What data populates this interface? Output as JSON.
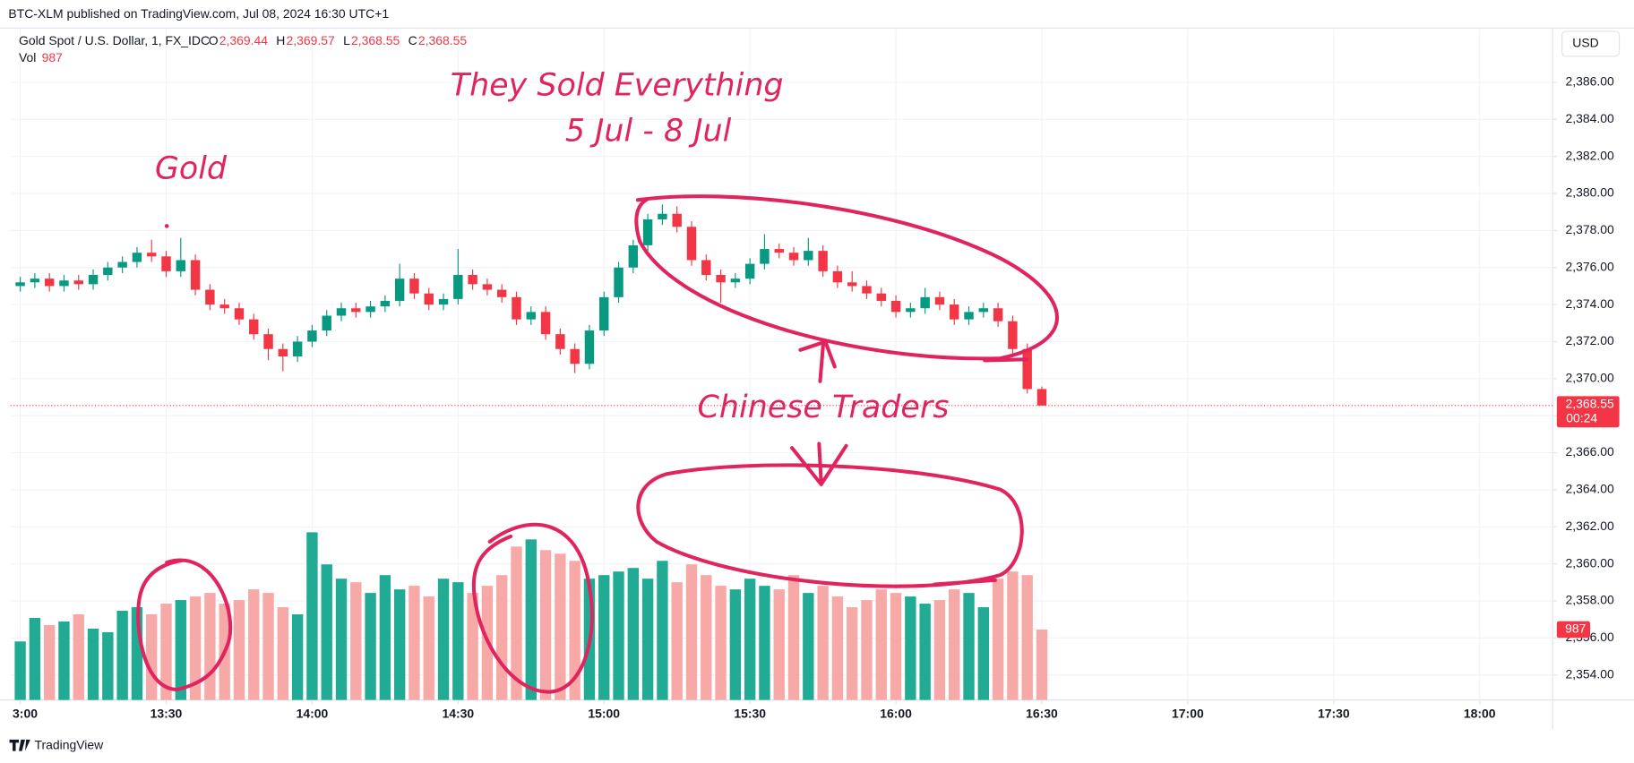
{
  "publish_line": "BTC-XLM published on TradingView.com, Jul 08, 2024 16:30 UTC+1",
  "currency": "USD",
  "footer": "TradingView",
  "chart_data": {
    "type": "candlestick",
    "symbol": "Gold Spot / U.S. Dollar, 1, FX_IDC",
    "legend_ohlc": [
      {
        "key": "O",
        "label": "2,369.44"
      },
      {
        "key": "H",
        "label": "2,369.57"
      },
      {
        "key": "L",
        "label": "2,368.55"
      },
      {
        "key": "C",
        "label": "2,368.55"
      }
    ],
    "volume_name": "Vol",
    "last_price": {
      "value": 2368.55,
      "label": "2,368.55"
    },
    "countdown": "00:24",
    "annotations": [
      "They Sold Everything",
      "5 Jul - 8 Jul",
      "Gold",
      "Chinese Traders"
    ],
    "up_color": "#089981",
    "down_color": "#f23645",
    "volume_up_color": "#22ab94",
    "volume_down_color": "#f7a9a7",
    "grid": true,
    "x": [
      "13:00",
      "13:03",
      "13:06",
      "13:09",
      "13:12",
      "13:15",
      "13:18",
      "13:21",
      "13:24",
      "13:27",
      "13:30",
      "13:33",
      "13:36",
      "13:39",
      "13:42",
      "13:45",
      "13:48",
      "13:51",
      "13:54",
      "13:57",
      "14:00",
      "14:03",
      "14:06",
      "14:09",
      "14:12",
      "14:15",
      "14:18",
      "14:21",
      "14:24",
      "14:27",
      "14:30",
      "14:33",
      "14:36",
      "14:39",
      "14:42",
      "14:45",
      "14:48",
      "14:51",
      "14:54",
      "14:57",
      "15:00",
      "15:03",
      "15:06",
      "15:09",
      "15:12",
      "15:15",
      "15:18",
      "15:21",
      "15:24",
      "15:27",
      "15:30",
      "15:33",
      "15:36",
      "15:39",
      "15:42",
      "15:45",
      "15:48",
      "15:51",
      "15:54",
      "15:57",
      "16:00",
      "16:03",
      "16:06",
      "16:09",
      "16:12",
      "16:15",
      "16:18",
      "16:21",
      "16:24",
      "16:27",
      "16:30"
    ],
    "open": [
      2375.0,
      2375.2,
      2375.4,
      2375.0,
      2375.3,
      2375.1,
      2375.6,
      2376.0,
      2376.3,
      2376.8,
      2376.6,
      2375.8,
      2376.4,
      2374.8,
      2374.0,
      2373.8,
      2373.2,
      2372.4,
      2371.6,
      2371.2,
      2372.0,
      2372.6,
      2373.4,
      2373.8,
      2373.6,
      2373.9,
      2374.2,
      2375.4,
      2374.6,
      2374.0,
      2374.3,
      2375.6,
      2375.1,
      2374.8,
      2374.4,
      2373.2,
      2373.6,
      2372.4,
      2371.6,
      2370.8,
      2372.6,
      2374.4,
      2376.0,
      2377.2,
      2378.6,
      2378.9,
      2378.2,
      2376.4,
      2375.6,
      2375.2,
      2375.4,
      2376.2,
      2377.0,
      2376.8,
      2376.4,
      2376.9,
      2375.8,
      2375.2,
      2375.0,
      2374.6,
      2374.2,
      2373.6,
      2373.8,
      2374.4,
      2374.0,
      2373.2,
      2373.6,
      2373.8,
      2373.1,
      2371.6,
      2369.44
    ],
    "high": [
      2375.5,
      2375.7,
      2375.7,
      2375.6,
      2375.6,
      2375.9,
      2376.3,
      2376.6,
      2377.1,
      2377.5,
      2376.9,
      2377.6,
      2376.7,
      2375.1,
      2374.3,
      2374.1,
      2373.5,
      2372.7,
      2371.9,
      2372.3,
      2372.9,
      2373.7,
      2374.1,
      2374.1,
      2374.2,
      2374.5,
      2376.2,
      2375.7,
      2374.9,
      2374.6,
      2377.0,
      2375.9,
      2375.4,
      2375.1,
      2374.7,
      2373.9,
      2373.9,
      2372.7,
      2371.9,
      2372.9,
      2374.7,
      2376.3,
      2377.5,
      2378.9,
      2379.4,
      2379.3,
      2378.5,
      2376.7,
      2375.9,
      2375.7,
      2376.5,
      2377.8,
      2377.3,
      2377.1,
      2377.6,
      2377.2,
      2376.1,
      2375.8,
      2375.3,
      2374.9,
      2374.5,
      2374.1,
      2374.9,
      2374.7,
      2374.3,
      2373.9,
      2374.1,
      2374.1,
      2373.4,
      2371.9,
      2369.57
    ],
    "low": [
      2374.7,
      2374.9,
      2374.7,
      2374.7,
      2374.8,
      2374.8,
      2375.3,
      2375.7,
      2376.0,
      2376.3,
      2375.5,
      2375.5,
      2374.5,
      2373.7,
      2373.5,
      2372.9,
      2372.1,
      2371.0,
      2370.4,
      2370.9,
      2371.7,
      2372.3,
      2373.1,
      2373.3,
      2373.3,
      2373.6,
      2373.9,
      2374.3,
      2373.7,
      2373.7,
      2374.0,
      2374.8,
      2374.5,
      2374.1,
      2372.9,
      2372.9,
      2372.1,
      2371.3,
      2370.3,
      2370.5,
      2372.3,
      2374.1,
      2375.7,
      2376.9,
      2378.3,
      2377.9,
      2376.1,
      2375.3,
      2374.1,
      2374.9,
      2375.1,
      2375.9,
      2376.5,
      2376.1,
      2376.1,
      2375.5,
      2374.9,
      2374.7,
      2374.3,
      2373.9,
      2373.3,
      2373.3,
      2373.5,
      2373.7,
      2372.9,
      2372.9,
      2373.3,
      2372.8,
      2371.3,
      2369.2,
      2368.55
    ],
    "close": [
      2375.2,
      2375.4,
      2375.0,
      2375.3,
      2375.1,
      2375.6,
      2376.0,
      2376.3,
      2376.8,
      2376.6,
      2375.8,
      2376.4,
      2374.8,
      2374.0,
      2373.8,
      2373.2,
      2372.4,
      2371.6,
      2371.2,
      2372.0,
      2372.6,
      2373.4,
      2373.8,
      2373.6,
      2373.9,
      2374.2,
      2375.4,
      2374.6,
      2374.0,
      2374.3,
      2375.6,
      2375.1,
      2374.8,
      2374.4,
      2373.2,
      2373.6,
      2372.4,
      2371.6,
      2370.8,
      2372.6,
      2374.4,
      2376.0,
      2377.2,
      2378.6,
      2378.9,
      2378.2,
      2376.4,
      2375.6,
      2375.2,
      2375.4,
      2376.2,
      2377.0,
      2376.8,
      2376.4,
      2376.9,
      2375.8,
      2375.2,
      2375.0,
      2374.6,
      2374.2,
      2373.6,
      2373.8,
      2374.4,
      2374.0,
      2373.2,
      2373.6,
      2373.8,
      2373.1,
      2371.6,
      2369.44,
      2368.55
    ],
    "volume": [
      820,
      1150,
      1050,
      1100,
      1200,
      1000,
      950,
      1250,
      1300,
      1200,
      1350,
      1400,
      1450,
      1500,
      1350,
      1400,
      1550,
      1500,
      1300,
      1200,
      2350,
      1900,
      1700,
      1650,
      1500,
      1750,
      1550,
      1600,
      1450,
      1700,
      1650,
      1500,
      1600,
      1750,
      2150,
      2250,
      2100,
      2050,
      1950,
      1700,
      1750,
      1800,
      1850,
      1700,
      1950,
      1650,
      1900,
      1750,
      1600,
      1550,
      1700,
      1600,
      1550,
      1750,
      1500,
      1600,
      1450,
      1300,
      1400,
      1550,
      1500,
      1450,
      1350,
      1400,
      1550,
      1500,
      1300,
      1700,
      1800,
      1750,
      987
    ],
    "xlim": [
      "12:58",
      "18:15"
    ],
    "xticks": [
      {
        "value": "13:00",
        "label": "3:00"
      },
      "13:30",
      "14:00",
      "14:30",
      "15:00",
      "15:30",
      "16:00",
      "16:30",
      "17:00",
      "17:30",
      "18:00"
    ],
    "ylim": [
      2352.65,
      2388.87
    ],
    "yticks": [
      {
        "value": 2354,
        "label": "2,354.00"
      },
      {
        "value": 2356,
        "label": "2,356.00"
      },
      {
        "value": 2358,
        "label": "2,358.00"
      },
      {
        "value": 2360,
        "label": "2,360.00"
      },
      {
        "value": 2362,
        "label": "2,362.00"
      },
      {
        "value": 2364,
        "label": "2,364.00"
      },
      {
        "value": 2366,
        "label": "2,366.00"
      },
      {
        "value": 2368,
        "label": "2,368.00"
      },
      {
        "value": 2370,
        "label": "2,370.00"
      },
      {
        "value": 2372,
        "label": "2,372.00"
      },
      {
        "value": 2374,
        "label": "2,374.00"
      },
      {
        "value": 2376,
        "label": "2,376.00"
      },
      {
        "value": 2378,
        "label": "2,378.00"
      },
      {
        "value": 2380,
        "label": "2,380.00"
      },
      {
        "value": 2382,
        "label": "2,382.00"
      },
      {
        "value": 2384,
        "label": "2,384.00"
      },
      {
        "value": 2386,
        "label": "2,386.00"
      }
    ]
  }
}
